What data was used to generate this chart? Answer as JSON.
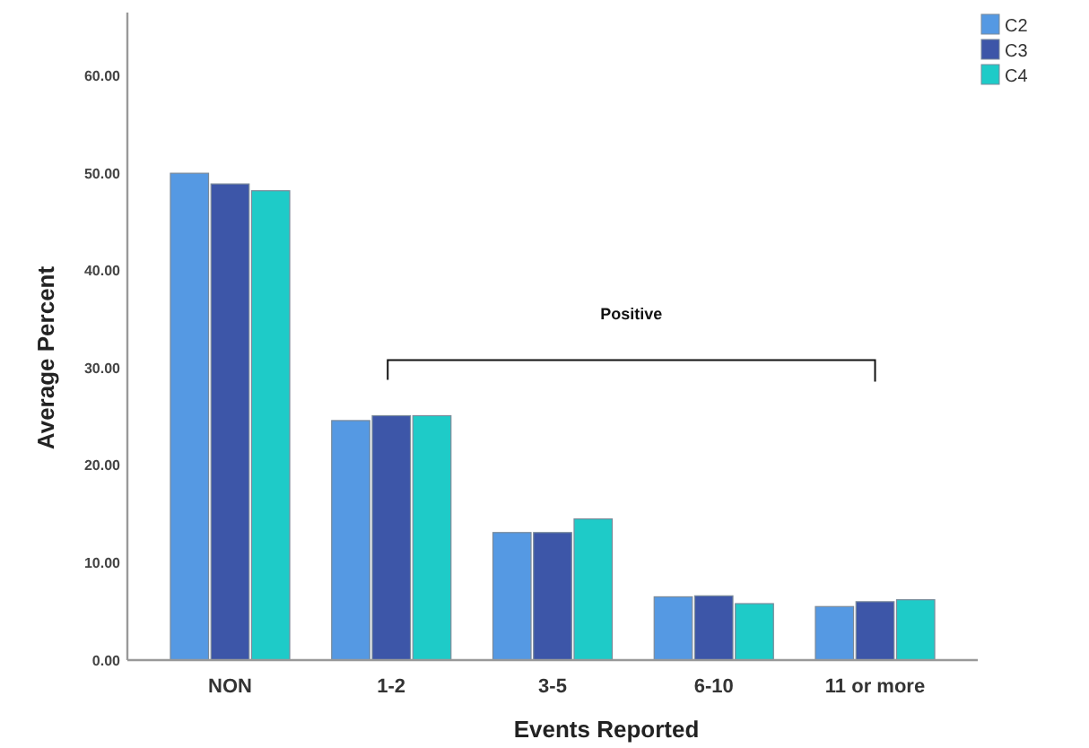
{
  "chart_data": {
    "type": "bar",
    "xlabel": "Events Reported",
    "ylabel": "Average Percent",
    "categories": [
      "NON",
      "1-2",
      "3-5",
      "6-10",
      "11 or more"
    ],
    "series": [
      {
        "name": "C2",
        "color": "#5599e3",
        "values": [
          50.0,
          24.6,
          13.1,
          6.5,
          5.5
        ]
      },
      {
        "name": "C3",
        "color": "#3d56a8",
        "values": [
          48.9,
          25.1,
          13.1,
          6.6,
          6.0
        ]
      },
      {
        "name": "C4",
        "color": "#1ecbc8",
        "values": [
          48.2,
          25.1,
          14.5,
          5.8,
          6.2
        ]
      }
    ],
    "ylim": [
      0,
      66.5
    ],
    "yticks": [
      {
        "value": 0,
        "label": "0.00"
      },
      {
        "value": 10,
        "label": "10.00"
      },
      {
        "value": 20,
        "label": "20.00"
      },
      {
        "value": 30,
        "label": "30.00"
      },
      {
        "value": 40,
        "label": "40.00"
      },
      {
        "value": 50,
        "label": "50.00"
      },
      {
        "value": 60,
        "label": "60.00"
      }
    ],
    "annotations": [
      "Positive"
    ],
    "legend": "top right",
    "grid": false
  }
}
